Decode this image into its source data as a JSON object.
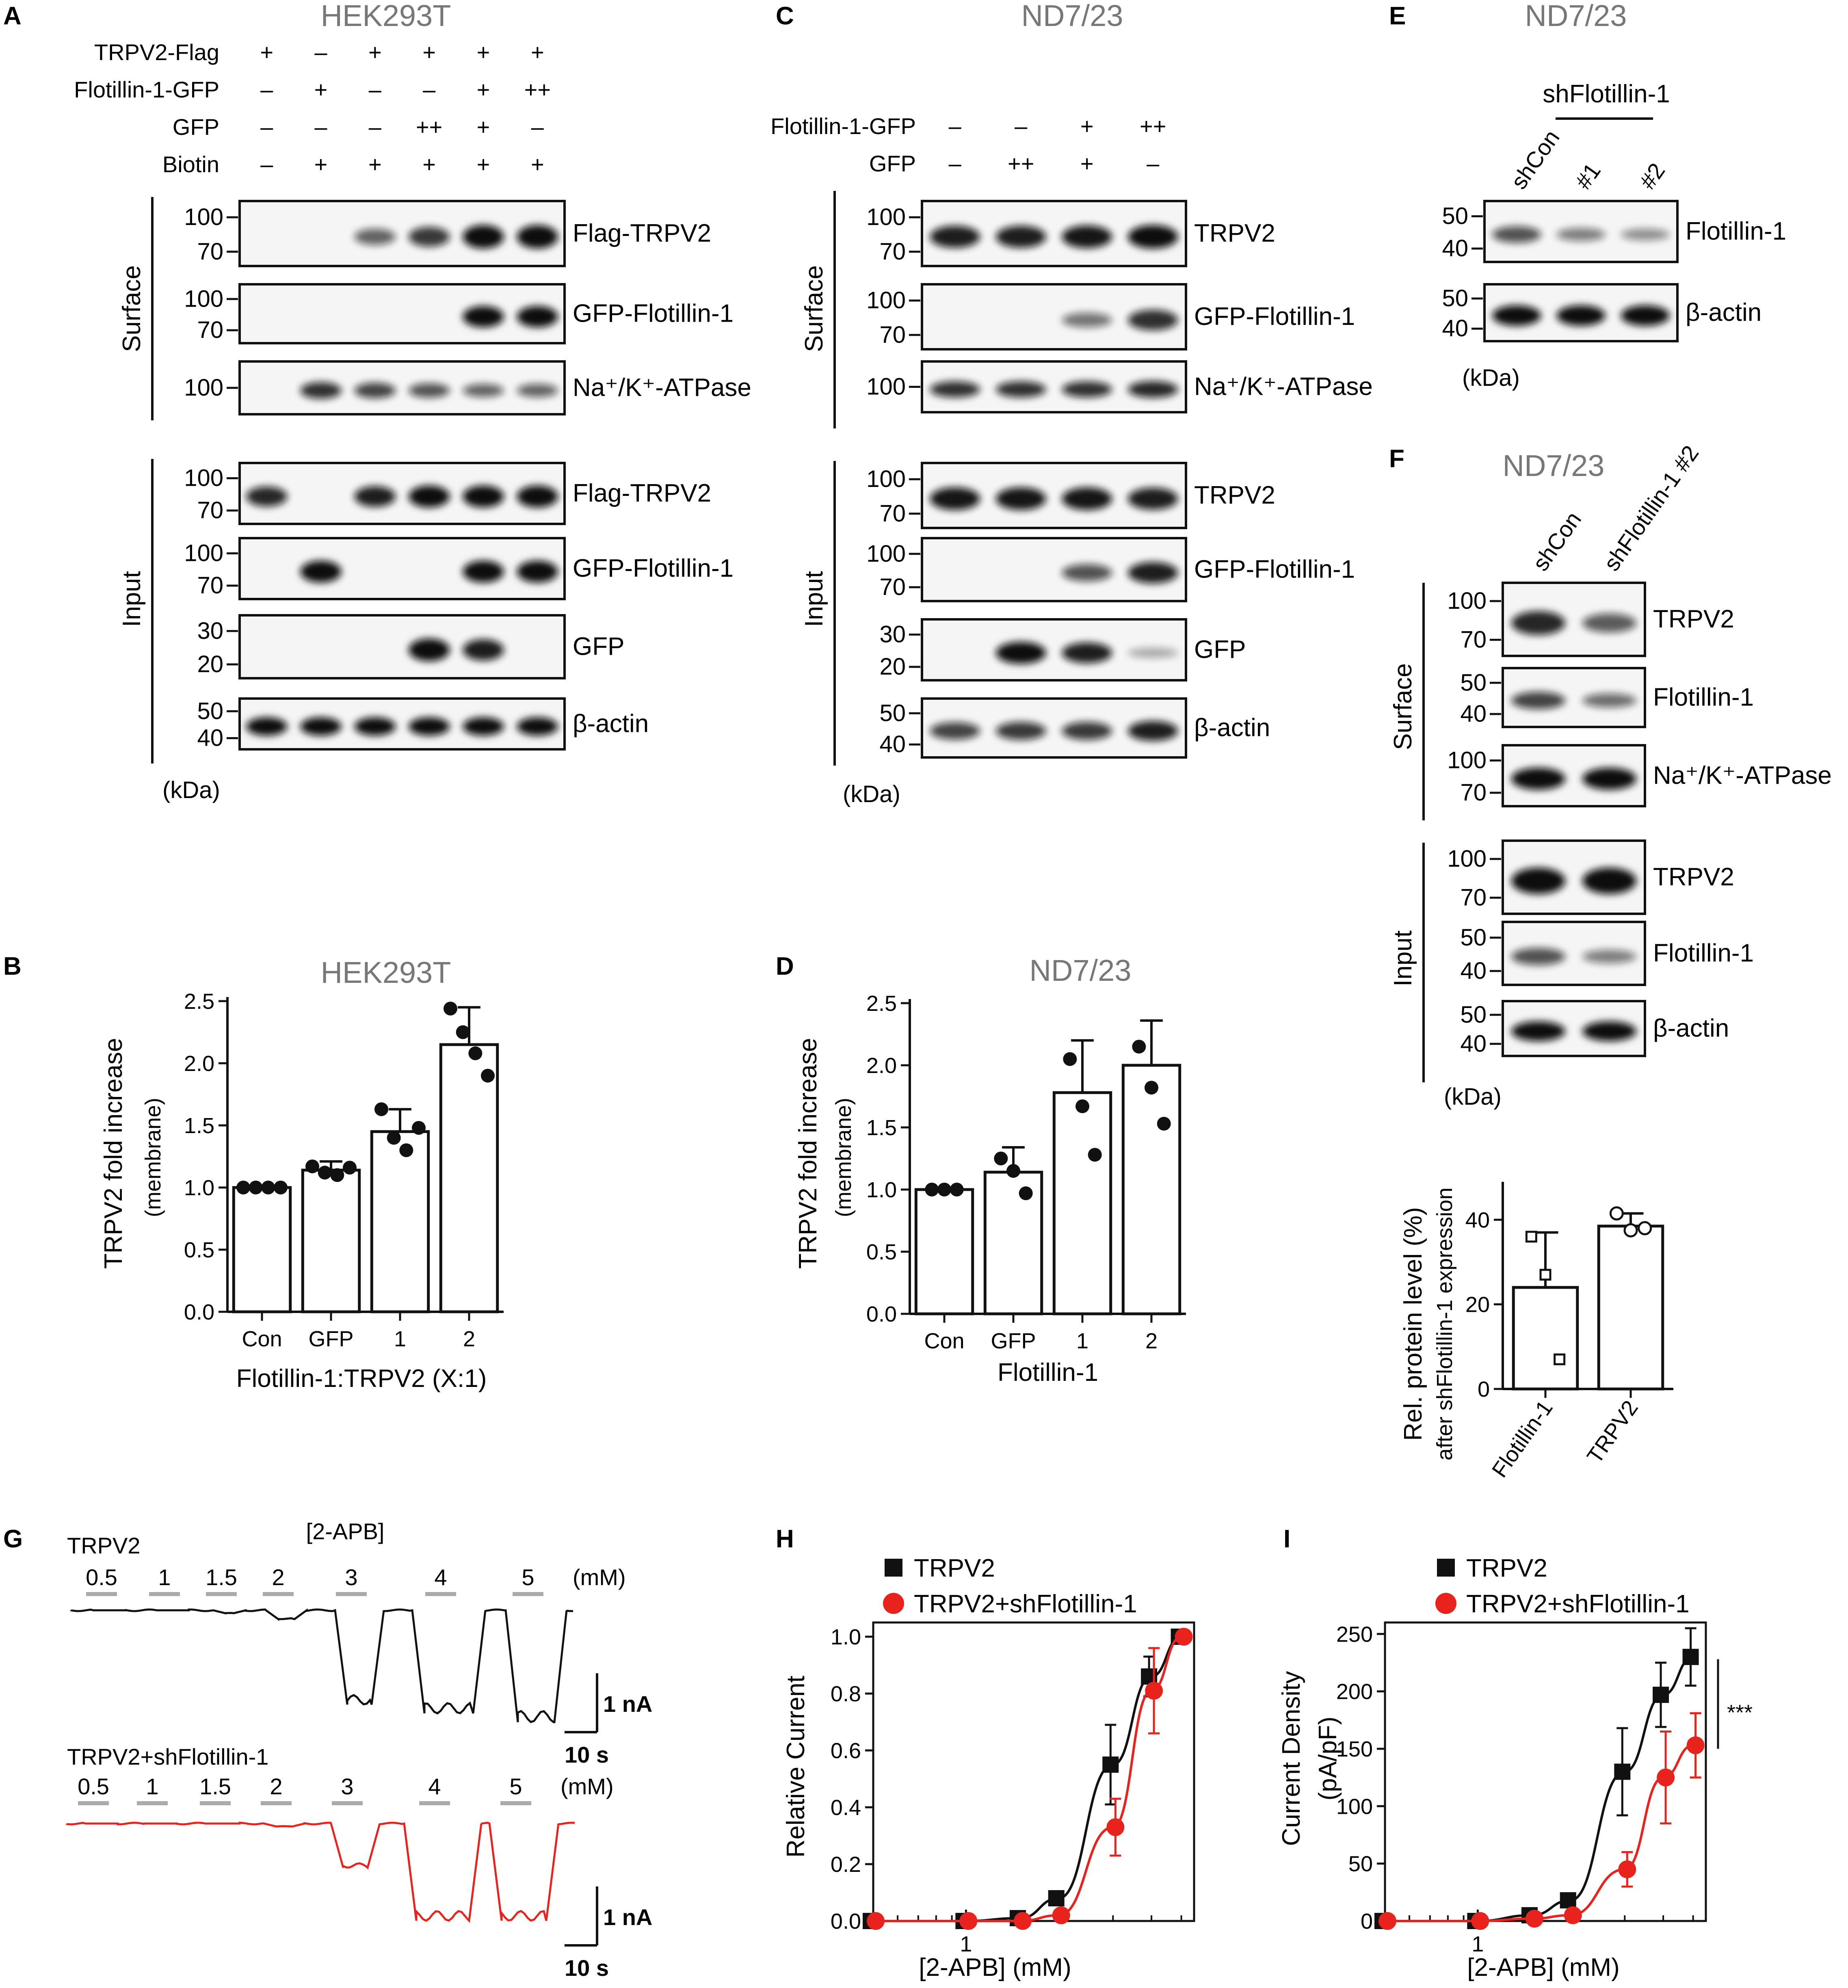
{
  "panel_a": {
    "label": "A",
    "title": "HEK293T",
    "kda": "(kDa)",
    "group_surface": "Surface",
    "group_input": "Input",
    "conditions": [
      {
        "name": "TRPV2-Flag",
        "values": [
          "+",
          "–",
          "+",
          "+",
          "+",
          "+"
        ]
      },
      {
        "name": "Flotillin-1-GFP",
        "values": [
          "–",
          "+",
          "–",
          "–",
          "+",
          "++"
        ]
      },
      {
        "name": "GFP",
        "values": [
          "–",
          "–",
          "–",
          "++",
          "+",
          "–"
        ]
      },
      {
        "name": "Biotin",
        "values": [
          "–",
          "+",
          "+",
          "+",
          "+",
          "+"
        ]
      }
    ],
    "blots": [
      {
        "label": "Flag-TRPV2",
        "markers": [
          "100",
          "70"
        ],
        "intensity": [
          0,
          0,
          0.5,
          0.75,
          1,
          1
        ]
      },
      {
        "label": "GFP-Flotillin-1",
        "markers": [
          "100",
          "70"
        ],
        "intensity": [
          0,
          0,
          0,
          0,
          1,
          1
        ]
      },
      {
        "label": "Na⁺/K⁺-ATPase",
        "markers": [
          "100"
        ],
        "intensity": [
          0,
          0.8,
          0.7,
          0.6,
          0.5,
          0.5
        ]
      },
      {
        "label": "Flag-TRPV2",
        "markers": [
          "100",
          "70"
        ],
        "intensity": [
          0.85,
          0,
          0.9,
          1,
          1,
          1
        ]
      },
      {
        "label": "GFP-Flotillin-1",
        "markers": [
          "100",
          "70"
        ],
        "intensity": [
          0,
          1,
          0,
          0,
          1,
          1
        ]
      },
      {
        "label": "GFP",
        "markers": [
          "30",
          "20"
        ],
        "intensity": [
          0,
          0,
          0,
          1,
          0.9,
          0
        ]
      },
      {
        "label": "β-actin",
        "markers": [
          "50",
          "40"
        ],
        "intensity": [
          1,
          1,
          1,
          1,
          1,
          1
        ]
      }
    ]
  },
  "panel_c": {
    "label": "C",
    "title": "ND7/23",
    "kda": "(kDa)",
    "group_surface": "Surface",
    "group_input": "Input",
    "conditions": [
      {
        "name": "Flotillin-1-GFP",
        "values": [
          "–",
          "–",
          "+",
          "++"
        ]
      },
      {
        "name": "GFP",
        "values": [
          "–",
          "++",
          "+",
          "–"
        ]
      }
    ],
    "blots": [
      {
        "label": "TRPV2",
        "markers": [
          "100",
          "70"
        ],
        "intensity": [
          0.9,
          0.9,
          0.95,
          1
        ]
      },
      {
        "label": "GFP-Flotillin-1",
        "markers": [
          "100",
          "70"
        ],
        "intensity": [
          0,
          0,
          0.4,
          0.8
        ]
      },
      {
        "label": "Na⁺/K⁺-ATPase",
        "markers": [
          "100"
        ],
        "intensity": [
          0.8,
          0.8,
          0.8,
          0.85
        ]
      },
      {
        "label": "TRPV2",
        "markers": [
          "100",
          "70"
        ],
        "intensity": [
          0.95,
          0.95,
          0.95,
          0.9
        ]
      },
      {
        "label": "GFP-Flotillin-1",
        "markers": [
          "100",
          "70"
        ],
        "intensity": [
          0,
          0,
          0.6,
          0.9
        ]
      },
      {
        "label": "GFP",
        "markers": [
          "30",
          "20"
        ],
        "intensity": [
          0,
          1,
          0.9,
          0.1
        ]
      },
      {
        "label": "β-actin",
        "markers": [
          "50",
          "40"
        ],
        "intensity": [
          0.7,
          0.75,
          0.75,
          0.9
        ]
      }
    ]
  },
  "panel_e": {
    "label": "E",
    "title": "ND7/23",
    "kda": "(kDa)",
    "group_header": "shFlotillin-1",
    "lanes": [
      "shCon",
      "#1",
      "#2"
    ],
    "blots": [
      {
        "label": "Flotillin-1",
        "markers": [
          "50",
          "40"
        ],
        "intensity": [
          0.6,
          0.35,
          0.25
        ]
      },
      {
        "label": "β-actin",
        "markers": [
          "50",
          "40"
        ],
        "intensity": [
          1,
          1,
          1
        ]
      }
    ]
  },
  "panel_f": {
    "label": "F",
    "title": "ND7/23",
    "kda": "(kDa)",
    "group_surface": "Surface",
    "group_input": "Input",
    "lanes": [
      "shCon",
      "shFlotillin-1 #2"
    ],
    "blots": [
      {
        "label": "TRPV2",
        "markers": [
          "100",
          "70"
        ],
        "intensity": [
          0.85,
          0.55
        ]
      },
      {
        "label": "Flotillin-1",
        "markers": [
          "50",
          "40"
        ],
        "intensity": [
          0.7,
          0.45
        ]
      },
      {
        "label": "Na⁺/K⁺-ATPase",
        "markers": [
          "100",
          "70"
        ],
        "intensity": [
          1,
          1
        ]
      },
      {
        "label": "TRPV2",
        "markers": [
          "100",
          "70"
        ],
        "intensity": [
          1,
          1
        ]
      },
      {
        "label": "Flotillin-1",
        "markers": [
          "50",
          "40"
        ],
        "intensity": [
          0.6,
          0.35
        ]
      },
      {
        "label": "β-actin",
        "markers": [
          "50",
          "40"
        ],
        "intensity": [
          1,
          1
        ]
      }
    ]
  },
  "panel_b": {
    "label": "B"
  },
  "panel_d": {
    "label": "D"
  },
  "panel_g": {
    "label": "G",
    "trace1_label": "TRPV2",
    "trace2_label": "TRPV2+shFlotillin-1",
    "drug_label": "[2-APB]",
    "unit_label": "(mM)",
    "concentrations": [
      "0.5",
      "1",
      "1.5",
      "2",
      "3",
      "4",
      "5"
    ],
    "scale_current": "1 nA",
    "scale_time": "10 s",
    "trace1_peak_current_nA": [
      0,
      0,
      0.05,
      0.15,
      1.6,
      1.75,
      1.9
    ],
    "trace2_peak_current_nA": [
      0,
      0,
      0,
      0.05,
      0.75,
      1.65,
      1.65
    ],
    "colors": {
      "trace1": "#111111",
      "trace2": "#e8231e"
    }
  },
  "panel_h": {
    "label": "H"
  },
  "panel_i": {
    "label": "I",
    "significance": "***"
  },
  "chart_data": [
    {
      "type": "bar",
      "title": "HEK293T",
      "ylabel": "TRPV2 fold increase",
      "ylabel_sub": "(membrane)",
      "xlabel": "Flotillin-1:TRPV2 (X:1)",
      "categories": [
        "Con",
        "GFP",
        "1",
        "2"
      ],
      "values": [
        1.0,
        1.14,
        1.45,
        2.15
      ],
      "errors": [
        0,
        0.07,
        0.18,
        0.3
      ],
      "points": [
        [
          1.0,
          1.0,
          1.0,
          1.0
        ],
        [
          1.17,
          1.12,
          1.1,
          1.16
        ],
        [
          1.63,
          1.4,
          1.3,
          1.48
        ],
        [
          2.44,
          2.25,
          2.08,
          1.9
        ]
      ],
      "ylim": [
        0,
        2.5
      ],
      "yticks": [
        "0.0",
        "0.5",
        "1.0",
        "1.5",
        "2.0",
        "2.5"
      ]
    },
    {
      "type": "bar",
      "title": "ND7/23",
      "ylabel": "TRPV2 fold increase",
      "ylabel_sub": "(membrane)",
      "xlabel": "Flotillin-1",
      "categories": [
        "Con",
        "GFP",
        "1",
        "2"
      ],
      "values": [
        1.0,
        1.14,
        1.78,
        2.0
      ],
      "errors": [
        0,
        0.2,
        0.42,
        0.36
      ],
      "points": [
        [
          1.0,
          1.0,
          1.0
        ],
        [
          1.25,
          1.15,
          0.97
        ],
        [
          2.05,
          1.67,
          1.28
        ],
        [
          2.15,
          1.82,
          1.53
        ]
      ],
      "ylim": [
        0,
        2.5
      ],
      "yticks": [
        "0.0",
        "0.5",
        "1.0",
        "1.5",
        "2.0",
        "2.5"
      ]
    },
    {
      "type": "bar",
      "ylabel": "Rel. protein level (%)",
      "ylabel_sub": "after shFlotillin-1 expression",
      "categories": [
        "Flotillin-1",
        "TRPV2"
      ],
      "values": [
        24,
        38.5
      ],
      "errors": [
        13,
        3
      ],
      "points": [
        [
          36,
          27,
          7
        ],
        [
          41.5,
          37.5,
          38
        ]
      ],
      "ylim": [
        0,
        48
      ],
      "yticks": [
        "0",
        "20",
        "40"
      ]
    },
    {
      "type": "line",
      "scale": "log-x",
      "ylabel": "Relative Current",
      "xlabel": "[2-APB] (mM)",
      "x": [
        0.5,
        1,
        1.5,
        2,
        3,
        4,
        5
      ],
      "series": [
        {
          "name": "TRPV2",
          "color": "#111111",
          "marker": "square",
          "values": [
            0,
            0,
            0.01,
            0.08,
            0.55,
            0.86,
            1.0
          ],
          "errors": [
            0.01,
            0.01,
            0.01,
            0.02,
            0.14,
            0.07,
            0
          ]
        },
        {
          "name": "TRPV2+shFlotillin-1",
          "color": "#e8231e",
          "marker": "circle",
          "values": [
            0,
            0,
            0,
            0.02,
            0.33,
            0.81,
            1.0
          ],
          "errors": [
            0.01,
            0.01,
            0.01,
            0.02,
            0.1,
            0.15,
            0
          ]
        }
      ],
      "xlim": [
        0.5,
        5.5
      ],
      "ylim": [
        0,
        1.05
      ],
      "yticks": [
        "0.0",
        "0.2",
        "0.4",
        "0.6",
        "0.8",
        "1.0"
      ],
      "xticks": [
        "1"
      ]
    },
    {
      "type": "line",
      "scale": "log-x",
      "ylabel": "Current Density",
      "ylabel_unit": "(pA/pF)",
      "xlabel": "[2-APB] (mM)",
      "x": [
        0.5,
        1,
        1.5,
        2,
        3,
        4,
        5
      ],
      "series": [
        {
          "name": "TRPV2",
          "color": "#111111",
          "marker": "square",
          "values": [
            0,
            0,
            5,
            18,
            130,
            197,
            230
          ],
          "errors": [
            2,
            2,
            3,
            6,
            38,
            28,
            25
          ]
        },
        {
          "name": "TRPV2+shFlotillin-1",
          "color": "#e8231e",
          "marker": "circle",
          "values": [
            0,
            0,
            2,
            5,
            45,
            125,
            153
          ],
          "errors": [
            2,
            2,
            2,
            3,
            15,
            40,
            28
          ]
        }
      ],
      "xlim": [
        0.5,
        5.5
      ],
      "ylim": [
        0,
        260
      ],
      "yticks": [
        "0",
        "50",
        "100",
        "150",
        "200",
        "250"
      ],
      "xticks": [
        "1"
      ]
    }
  ]
}
